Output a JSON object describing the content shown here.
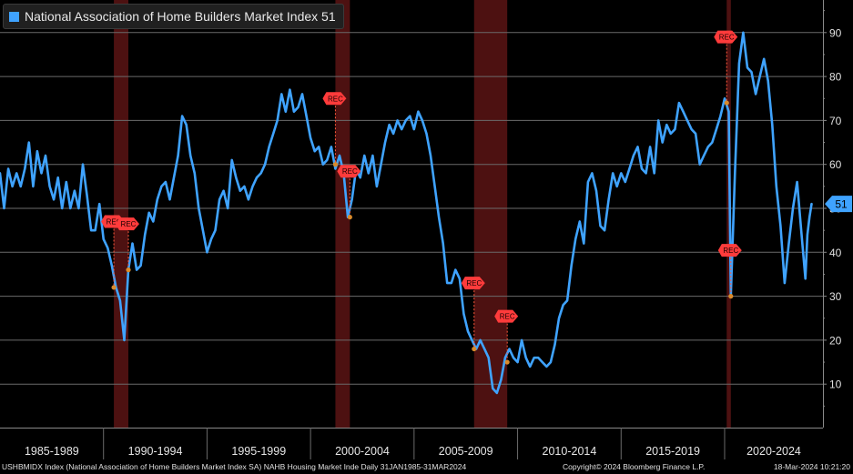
{
  "legend": {
    "label": "National Association of Home Builders Market Index 51",
    "color": "#3fa3ff"
  },
  "footer": {
    "left": "USHBMIDX Index (National Association of Home Builders Market Index SA) NAHB Housing Market Inde  Daily 31JAN1985-31MAR2024",
    "center": "Copyright© 2024 Bloomberg Finance L.P.",
    "right": "18-Mar-2024 10:21:20"
  },
  "chart_data": {
    "type": "line",
    "title": "",
    "xlabel": "",
    "ylabel": "",
    "ylim": [
      0,
      100
    ],
    "yticks": [
      10,
      20,
      30,
      40,
      50,
      60,
      70,
      80,
      90
    ],
    "x_period_labels": [
      "1985-1989",
      "1990-1994",
      "1995-1999",
      "2000-2004",
      "2005-2009",
      "2010-2014",
      "2015-2019",
      "2020-2024"
    ],
    "last_value_label": "51",
    "recessions": [
      [
        1990.5,
        1991.2
      ],
      [
        2001.2,
        2001.9
      ],
      [
        2007.9,
        2009.5
      ],
      [
        2020.1,
        2020.3
      ]
    ],
    "rec_markers": [
      {
        "date": 1990.5,
        "value": 32,
        "label": "REC"
      },
      {
        "date": 1991.2,
        "value": 36,
        "label": "REC"
      },
      {
        "date": 2001.2,
        "value": 60,
        "label": "REC"
      },
      {
        "date": 2001.9,
        "value": 48,
        "label": "REC"
      },
      {
        "date": 2007.9,
        "value": 18,
        "label": "REC"
      },
      {
        "date": 2009.5,
        "value": 15,
        "label": "REC"
      },
      {
        "date": 2020.1,
        "value": 74,
        "label": "REC"
      },
      {
        "date": 2020.3,
        "value": 30,
        "label": "REC"
      }
    ],
    "series": [
      {
        "name": "National Association of Home Builders Market Index",
        "color": "#3fa3ff",
        "points": [
          [
            1985.0,
            58
          ],
          [
            1985.2,
            50
          ],
          [
            1985.4,
            59
          ],
          [
            1985.6,
            55
          ],
          [
            1985.8,
            58
          ],
          [
            1986.0,
            55
          ],
          [
            1986.2,
            59
          ],
          [
            1986.4,
            65
          ],
          [
            1986.6,
            55
          ],
          [
            1986.8,
            63
          ],
          [
            1987.0,
            58
          ],
          [
            1987.2,
            62
          ],
          [
            1987.4,
            55
          ],
          [
            1987.6,
            52
          ],
          [
            1987.8,
            57
          ],
          [
            1988.0,
            50
          ],
          [
            1988.2,
            56
          ],
          [
            1988.4,
            50
          ],
          [
            1988.6,
            54
          ],
          [
            1988.8,
            50
          ],
          [
            1989.0,
            60
          ],
          [
            1989.2,
            53
          ],
          [
            1989.4,
            45
          ],
          [
            1989.6,
            45
          ],
          [
            1989.8,
            51
          ],
          [
            1990.0,
            43
          ],
          [
            1990.2,
            41
          ],
          [
            1990.4,
            37
          ],
          [
            1990.6,
            32
          ],
          [
            1990.8,
            29
          ],
          [
            1991.0,
            20
          ],
          [
            1991.2,
            36
          ],
          [
            1991.4,
            42
          ],
          [
            1991.6,
            36
          ],
          [
            1991.8,
            37
          ],
          [
            1992.0,
            44
          ],
          [
            1992.2,
            49
          ],
          [
            1992.4,
            47
          ],
          [
            1992.6,
            52
          ],
          [
            1992.8,
            55
          ],
          [
            1993.0,
            56
          ],
          [
            1993.2,
            52
          ],
          [
            1993.4,
            57
          ],
          [
            1993.6,
            62
          ],
          [
            1993.8,
            71
          ],
          [
            1994.0,
            69
          ],
          [
            1994.2,
            62
          ],
          [
            1994.4,
            58
          ],
          [
            1994.6,
            50
          ],
          [
            1994.8,
            45
          ],
          [
            1995.0,
            40
          ],
          [
            1995.2,
            43
          ],
          [
            1995.4,
            45
          ],
          [
            1995.6,
            52
          ],
          [
            1995.8,
            54
          ],
          [
            1996.0,
            50
          ],
          [
            1996.2,
            61
          ],
          [
            1996.4,
            57
          ],
          [
            1996.6,
            54
          ],
          [
            1996.8,
            55
          ],
          [
            1997.0,
            52
          ],
          [
            1997.2,
            55
          ],
          [
            1997.4,
            57
          ],
          [
            1997.6,
            58
          ],
          [
            1997.8,
            60
          ],
          [
            1998.0,
            64
          ],
          [
            1998.2,
            67
          ],
          [
            1998.4,
            70
          ],
          [
            1998.6,
            76
          ],
          [
            1998.8,
            72
          ],
          [
            1999.0,
            77
          ],
          [
            1999.2,
            72
          ],
          [
            1999.4,
            73
          ],
          [
            1999.6,
            76
          ],
          [
            1999.8,
            71
          ],
          [
            2000.0,
            66
          ],
          [
            2000.2,
            63
          ],
          [
            2000.4,
            64
          ],
          [
            2000.6,
            60
          ],
          [
            2000.8,
            61
          ],
          [
            2001.0,
            64
          ],
          [
            2001.2,
            59
          ],
          [
            2001.4,
            62
          ],
          [
            2001.6,
            58
          ],
          [
            2001.8,
            48
          ],
          [
            2002.0,
            52
          ],
          [
            2002.2,
            59
          ],
          [
            2002.4,
            57
          ],
          [
            2002.6,
            62
          ],
          [
            2002.8,
            58
          ],
          [
            2003.0,
            62
          ],
          [
            2003.2,
            55
          ],
          [
            2003.4,
            60
          ],
          [
            2003.6,
            65
          ],
          [
            2003.8,
            69
          ],
          [
            2004.0,
            67
          ],
          [
            2004.2,
            70
          ],
          [
            2004.4,
            68
          ],
          [
            2004.6,
            70
          ],
          [
            2004.8,
            71
          ],
          [
            2005.0,
            68
          ],
          [
            2005.2,
            72
          ],
          [
            2005.4,
            70
          ],
          [
            2005.6,
            67
          ],
          [
            2005.8,
            62
          ],
          [
            2006.0,
            55
          ],
          [
            2006.2,
            48
          ],
          [
            2006.4,
            42
          ],
          [
            2006.6,
            33
          ],
          [
            2006.8,
            33
          ],
          [
            2007.0,
            36
          ],
          [
            2007.2,
            34
          ],
          [
            2007.4,
            26
          ],
          [
            2007.6,
            22
          ],
          [
            2007.8,
            20
          ],
          [
            2008.0,
            18
          ],
          [
            2008.2,
            20
          ],
          [
            2008.4,
            18
          ],
          [
            2008.6,
            16
          ],
          [
            2008.8,
            9
          ],
          [
            2009.0,
            8
          ],
          [
            2009.2,
            11
          ],
          [
            2009.4,
            16
          ],
          [
            2009.6,
            18
          ],
          [
            2009.8,
            16
          ],
          [
            2010.0,
            15
          ],
          [
            2010.2,
            20
          ],
          [
            2010.4,
            16
          ],
          [
            2010.6,
            14
          ],
          [
            2010.8,
            16
          ],
          [
            2011.0,
            16
          ],
          [
            2011.2,
            15
          ],
          [
            2011.4,
            14
          ],
          [
            2011.6,
            15
          ],
          [
            2011.8,
            19
          ],
          [
            2012.0,
            25
          ],
          [
            2012.2,
            28
          ],
          [
            2012.4,
            29
          ],
          [
            2012.6,
            37
          ],
          [
            2012.8,
            43
          ],
          [
            2013.0,
            47
          ],
          [
            2013.2,
            42
          ],
          [
            2013.4,
            56
          ],
          [
            2013.6,
            58
          ],
          [
            2013.8,
            54
          ],
          [
            2014.0,
            46
          ],
          [
            2014.2,
            45
          ],
          [
            2014.4,
            52
          ],
          [
            2014.6,
            58
          ],
          [
            2014.8,
            55
          ],
          [
            2015.0,
            58
          ],
          [
            2015.2,
            56
          ],
          [
            2015.4,
            59
          ],
          [
            2015.6,
            62
          ],
          [
            2015.8,
            64
          ],
          [
            2016.0,
            59
          ],
          [
            2016.2,
            58
          ],
          [
            2016.4,
            64
          ],
          [
            2016.6,
            58
          ],
          [
            2016.8,
            70
          ],
          [
            2017.0,
            65
          ],
          [
            2017.2,
            69
          ],
          [
            2017.4,
            67
          ],
          [
            2017.6,
            68
          ],
          [
            2017.8,
            74
          ],
          [
            2018.0,
            72
          ],
          [
            2018.2,
            70
          ],
          [
            2018.4,
            68
          ],
          [
            2018.6,
            67
          ],
          [
            2018.8,
            60
          ],
          [
            2019.0,
            62
          ],
          [
            2019.2,
            64
          ],
          [
            2019.4,
            65
          ],
          [
            2019.6,
            68
          ],
          [
            2019.8,
            71
          ],
          [
            2020.0,
            75
          ],
          [
            2020.2,
            72
          ],
          [
            2020.3,
            30
          ],
          [
            2020.5,
            58
          ],
          [
            2020.7,
            83
          ],
          [
            2020.9,
            90
          ],
          [
            2021.1,
            82
          ],
          [
            2021.3,
            81
          ],
          [
            2021.5,
            76
          ],
          [
            2021.7,
            80
          ],
          [
            2021.9,
            84
          ],
          [
            2022.1,
            79
          ],
          [
            2022.3,
            69
          ],
          [
            2022.5,
            55
          ],
          [
            2022.7,
            46
          ],
          [
            2022.9,
            33
          ],
          [
            2023.1,
            42
          ],
          [
            2023.3,
            50
          ],
          [
            2023.5,
            56
          ],
          [
            2023.7,
            45
          ],
          [
            2023.9,
            34
          ],
          [
            2024.0,
            44
          ],
          [
            2024.1,
            48
          ],
          [
            2024.2,
            51
          ]
        ]
      }
    ]
  }
}
